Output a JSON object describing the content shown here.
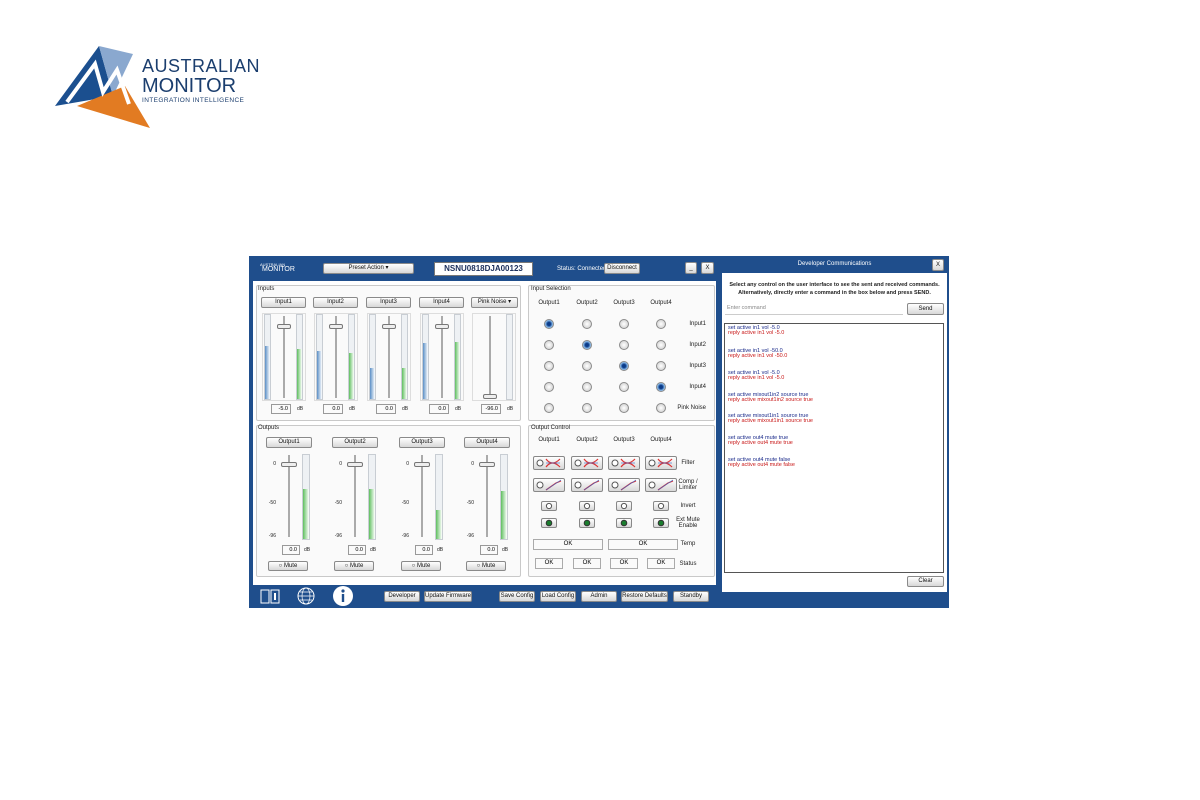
{
  "logo": {
    "line1": "AUSTRALIAN",
    "line2": "MONITOR",
    "tagline": "INTEGRATION INTELLIGENCE"
  },
  "app": {
    "brand": [
      "AUSTRALIAN",
      "MONITOR"
    ],
    "preset": "Preset Action",
    "serial": "NSNU0818DJA00123",
    "status": "Status: Connected",
    "disconnect": "Disconnect",
    "minimize": "_",
    "close": "X"
  },
  "inputs": {
    "title": "Inputs",
    "unit": "dB",
    "channels": [
      {
        "name": "Input1",
        "level": "-5.0",
        "meter": [
          63,
          60
        ]
      },
      {
        "name": "Input2",
        "level": "0.0",
        "meter": [
          57,
          55
        ]
      },
      {
        "name": "Input3",
        "level": "0.0",
        "meter": [
          37,
          37
        ]
      },
      {
        "name": "Input4",
        "level": "0.0",
        "meter": [
          67,
          68
        ]
      }
    ],
    "pink_noise": {
      "name": "Pink Noise",
      "level": "-96.0"
    }
  },
  "outputs": {
    "title": "Outputs",
    "unit": "dB",
    "scale": [
      "0",
      "-50",
      "-96"
    ],
    "mute": "Mute",
    "channels": [
      {
        "name": "Output1",
        "level": "0.0",
        "meter": 60
      },
      {
        "name": "Output2",
        "level": "0.0",
        "meter": 60
      },
      {
        "name": "Output3",
        "level": "0.0",
        "meter": 34
      },
      {
        "name": "Output4",
        "level": "0.0",
        "meter": 57
      }
    ]
  },
  "input_selection": {
    "title": "Input Selection",
    "columns": [
      "Output1",
      "Output2",
      "Output3",
      "Output4"
    ],
    "rows": [
      "Input1",
      "Input2",
      "Input3",
      "Input4",
      "Pink Noise"
    ],
    "selected": [
      0,
      1,
      2,
      3,
      null
    ]
  },
  "output_control": {
    "title": "Output Control",
    "columns": [
      "Output1",
      "Output2",
      "Output3",
      "Output4"
    ],
    "rows": [
      "Filter",
      "Comp / Limiter",
      "Invert",
      "Ext Mute Enable",
      "Temp",
      "Status"
    ],
    "temp": [
      "OK",
      "OK"
    ],
    "status": [
      "OK",
      "OK",
      "OK",
      "OK"
    ]
  },
  "toolbar": {
    "buttons": [
      "Developer",
      "Update Firmware",
      "Save Config",
      "Load Config",
      "Admin",
      "Restore Defaults",
      "Standby"
    ]
  },
  "developer": {
    "title": "Developer Communications",
    "close": "X",
    "instructions": [
      "Select any control on the user interface to see the sent and received commands.",
      "Alternatively, directly enter a command in the box below and press SEND."
    ],
    "placeholder": "Enter command",
    "send": "Send",
    "log": [
      {
        "sent": "set active in1 vol -5.0",
        "reply": "reply active in1 vol -5.0"
      },
      {
        "sent": "set active in1 vol -50.0",
        "reply": "reply active in1 vol -50.0"
      },
      {
        "sent": "set active in1 vol -5.0",
        "reply": "reply active in1 vol -5.0"
      },
      {
        "sent": "set active mixout1in2 source true",
        "reply": "reply active mixout1in2 source true"
      },
      {
        "sent": "set active mixout1in1 source true",
        "reply": "reply active mixout1in1 source true"
      },
      {
        "sent": "set active out4 mute true",
        "reply": "reply active out4 mute true"
      },
      {
        "sent": "set active out4 mute false",
        "reply": "reply active out4 mute false"
      }
    ],
    "clear": "Clear"
  }
}
